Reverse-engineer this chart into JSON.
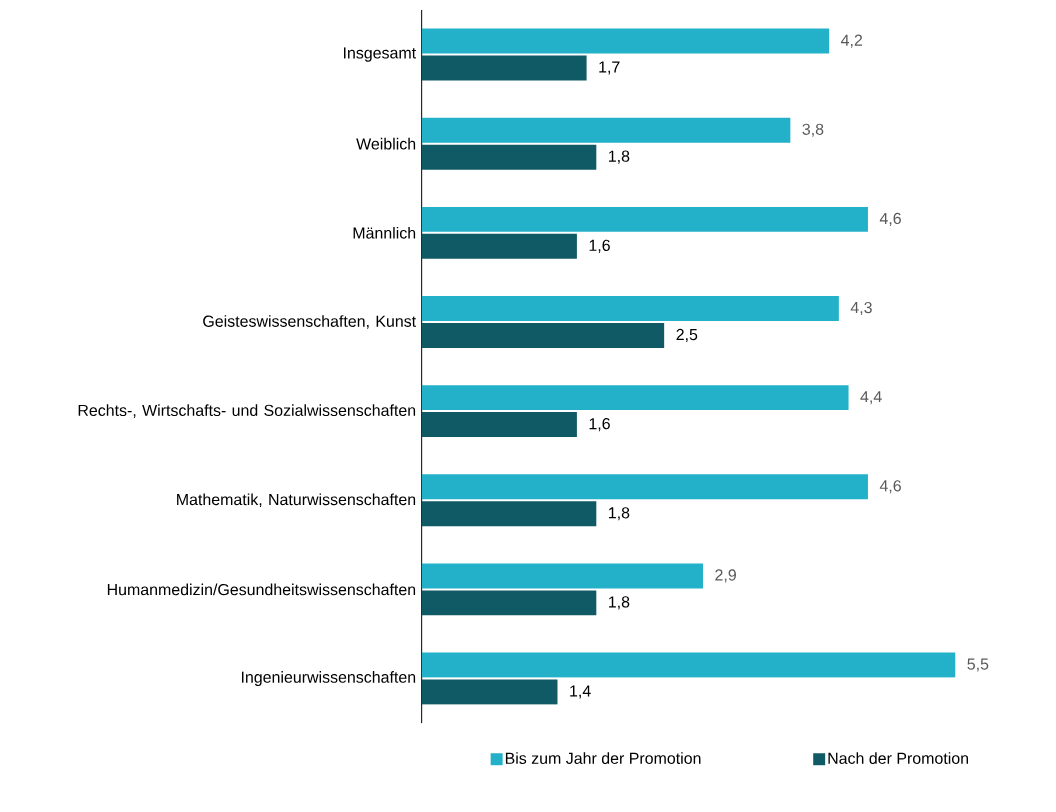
{
  "chart_data": {
    "type": "bar",
    "orientation": "horizontal",
    "categories": [
      "Insgesamt",
      "Weiblich",
      "Männlich",
      "Geisteswissenschaften, Kunst",
      "Rechts-, Wirtschafts- und Sozialwissenschaften",
      "Mathematik, Naturwissenschaften",
      "Humanmedizin/Gesundheitswissenschaften",
      "Ingenieurwissenschaften"
    ],
    "series": [
      {
        "name": "Bis zum Jahr der Promotion",
        "color": "#22b1c8",
        "values": [
          4.2,
          3.8,
          4.6,
          4.3,
          4.4,
          4.6,
          2.9,
          5.5
        ],
        "value_labels": [
          "4,2",
          "3,8",
          "4,6",
          "4,3",
          "4,4",
          "4,6",
          "2,9",
          "5,5"
        ]
      },
      {
        "name": "Nach der Promotion",
        "color": "#0f5a64",
        "values": [
          1.7,
          1.8,
          1.6,
          2.5,
          1.6,
          1.8,
          1.8,
          1.4
        ],
        "value_labels": [
          "1,7",
          "1,8",
          "1,6",
          "2,5",
          "1,6",
          "1,8",
          "1,8",
          "1,4"
        ]
      }
    ],
    "legend": "bottom",
    "grid": false
  }
}
